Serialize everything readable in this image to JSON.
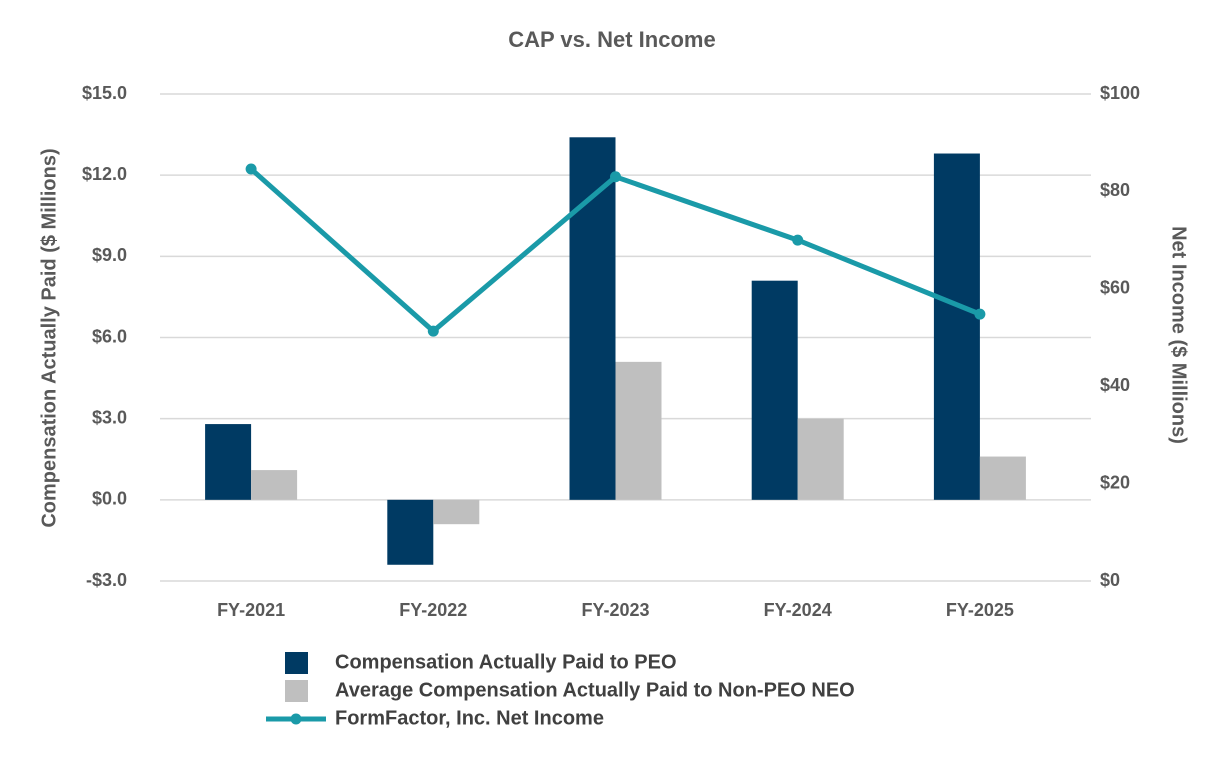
{
  "chart_data": {
    "type": "bar",
    "title": "CAP vs. Net Income",
    "y_label": "Compensation Actually Paid ($ Millions)",
    "y2_label": "Net Income ($ Millions)",
    "categories": [
      "FY-2021",
      "FY-2022",
      "FY-2023",
      "FY-2024",
      "FY-2025"
    ],
    "series": [
      {
        "name": "Compensation Actually Paid to PEO",
        "type": "bar",
        "axis": "y",
        "color": "#003a63",
        "values": [
          2.8,
          -2.4,
          13.4,
          8.1,
          12.8
        ]
      },
      {
        "name": "Average Compensation Actually Paid to Non-PEO NEO",
        "type": "bar",
        "axis": "y",
        "color": "#bfbfbf",
        "values": [
          1.1,
          -0.9,
          5.1,
          3.0,
          1.6
        ]
      },
      {
        "name": "FormFactor, Inc. Net Income",
        "type": "line",
        "axis": "y2",
        "color": "#1a9aa8",
        "values": [
          84.6,
          51.3,
          83.0,
          70.0,
          54.8
        ]
      }
    ],
    "ylim": [
      -3,
      15
    ],
    "yticks": [
      {
        "value": -3,
        "label": "-$3.0"
      },
      {
        "value": 0,
        "label": "$0.0"
      },
      {
        "value": 3,
        "label": "$3.0"
      },
      {
        "value": 6,
        "label": "$6.0"
      },
      {
        "value": 9,
        "label": "$9.0"
      },
      {
        "value": 12,
        "label": "$12.0"
      },
      {
        "value": 15,
        "label": "$15.0"
      }
    ],
    "y2lim": [
      0,
      100
    ],
    "y2ticks": [
      {
        "value": 0,
        "label": "$0"
      },
      {
        "value": 20,
        "label": "$20"
      },
      {
        "value": 40,
        "label": "$40"
      },
      {
        "value": 60,
        "label": "$60"
      },
      {
        "value": 80,
        "label": "$80"
      },
      {
        "value": 100,
        "label": "$100"
      }
    ],
    "grid": true
  }
}
